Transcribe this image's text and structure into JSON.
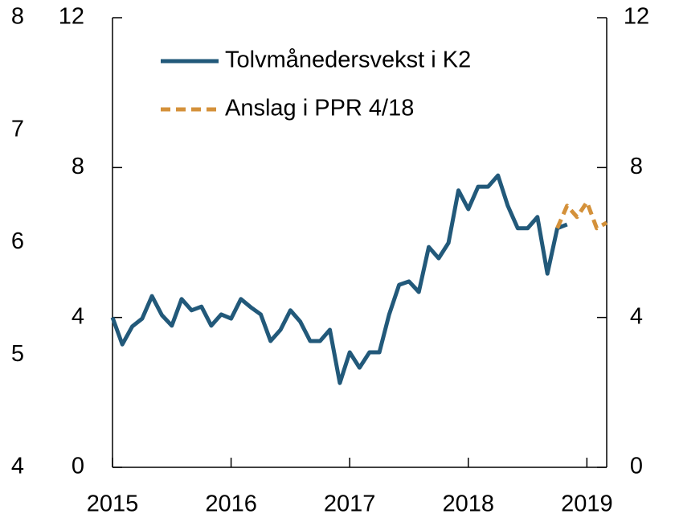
{
  "chart_data": {
    "type": "line",
    "x": [
      2015,
      2015.083,
      2015.167,
      2015.25,
      2015.333,
      2015.417,
      2015.5,
      2015.583,
      2015.667,
      2015.75,
      2015.833,
      2015.917,
      2016,
      2016.083,
      2016.167,
      2016.25,
      2016.333,
      2016.417,
      2016.5,
      2016.583,
      2016.667,
      2016.75,
      2016.833,
      2016.917,
      2017,
      2017.083,
      2017.167,
      2017.25,
      2017.333,
      2017.417,
      2017.5,
      2017.583,
      2017.667,
      2017.75,
      2017.833,
      2017.917,
      2018,
      2018.083,
      2018.167,
      2018.25,
      2018.333,
      2018.417,
      2018.5,
      2018.583,
      2018.667,
      2018.75,
      2018.833,
      2018.917,
      2019,
      2019.083,
      2019.167
    ],
    "series": [
      {
        "name": "Tolvmånedersvekst i K2",
        "color": "#22597a",
        "dash": false,
        "values": [
          4.0,
          3.28,
          3.76,
          3.97,
          4.57,
          4.06,
          3.78,
          4.49,
          4.19,
          4.29,
          3.78,
          4.08,
          3.97,
          4.49,
          4.27,
          4.08,
          3.37,
          3.67,
          4.19,
          3.89,
          3.37,
          3.37,
          3.67,
          2.25,
          3.07,
          2.66,
          3.07,
          3.07,
          4.08,
          4.87,
          4.96,
          4.68,
          5.88,
          5.58,
          5.99,
          7.39,
          6.89,
          7.49,
          7.49,
          7.79,
          6.98,
          6.38,
          6.38,
          6.68,
          5.17,
          6.38,
          6.48,
          null,
          null,
          null,
          null
        ]
      },
      {
        "name": "Anslag i PPR 4/18",
        "color": "#d4913a",
        "dash": true,
        "values": [
          null,
          null,
          null,
          null,
          null,
          null,
          null,
          null,
          null,
          null,
          null,
          null,
          null,
          null,
          null,
          null,
          null,
          null,
          null,
          null,
          null,
          null,
          null,
          null,
          null,
          null,
          null,
          null,
          null,
          null,
          null,
          null,
          null,
          null,
          null,
          null,
          null,
          null,
          null,
          null,
          null,
          null,
          null,
          null,
          null,
          6.38,
          6.98,
          6.68,
          7.08,
          6.38,
          6.53
        ]
      }
    ],
    "xlim": [
      2015,
      2019.167
    ],
    "xticks": [
      2015,
      2016,
      2017,
      2018,
      2019
    ],
    "ylim": [
      0,
      12
    ],
    "yticks": [
      0,
      4,
      8,
      12
    ],
    "y2lim": [
      0,
      12
    ],
    "y2ticks": [
      0,
      4,
      8,
      12
    ],
    "y3lim": [
      4,
      8
    ],
    "y3ticks": [
      4,
      5,
      6,
      7,
      8
    ]
  }
}
